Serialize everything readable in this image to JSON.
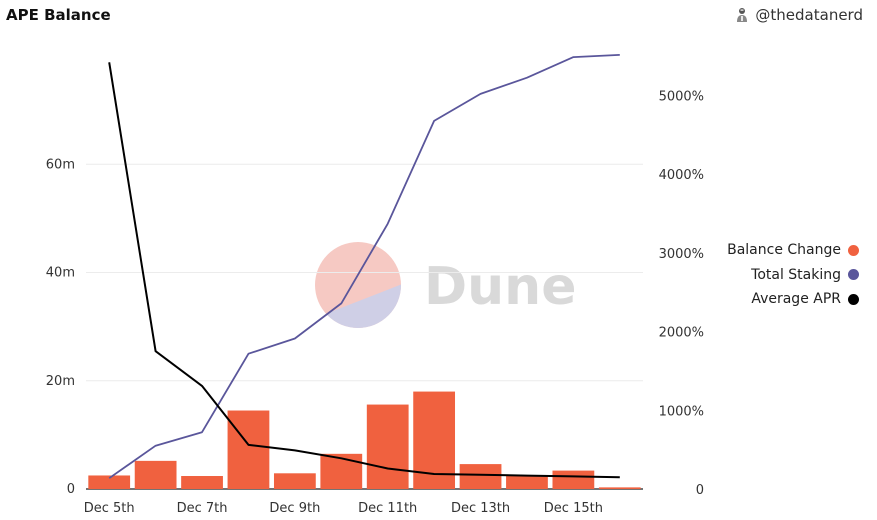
{
  "header": {
    "title": "APE Balance",
    "author": "@thedatanerd",
    "author_icon": "person-avatar-icon"
  },
  "watermark": {
    "text": "Dune",
    "colors": [
      "#f6c9c3",
      "#cfcfe6"
    ]
  },
  "chart_data": {
    "type": "bar",
    "categories": [
      "Dec 5th",
      "Dec 6th",
      "Dec 7th",
      "Dec 8th",
      "Dec 9th",
      "Dec 10th",
      "Dec 11th",
      "Dec 12th",
      "Dec 13th",
      "Dec 14th",
      "Dec 15th",
      "Dec 16th"
    ],
    "x_tick_labels": [
      "Dec 5th",
      "Dec 7th",
      "Dec 9th",
      "Dec 11th",
      "Dec 13th",
      "Dec 15th"
    ],
    "y_left": {
      "ticks": [
        0,
        20,
        40,
        60
      ],
      "tick_labels": [
        "0",
        "20m",
        "40m",
        "60m"
      ],
      "range": [
        0,
        80
      ]
    },
    "y_right": {
      "ticks": [
        0,
        1000,
        2000,
        3000,
        4000,
        5000
      ],
      "tick_labels": [
        "0",
        "1000%",
        "2000%",
        "3000%",
        "4000%",
        "5000%"
      ],
      "range": [
        0,
        5500
      ]
    },
    "grid": true,
    "legend_position": "right",
    "series": [
      {
        "name": "Balance Change",
        "type": "bar",
        "axis": "left",
        "color": "#f0613f",
        "values": [
          2.5,
          5.2,
          2.4,
          14.5,
          2.9,
          6.5,
          15.6,
          18.0,
          4.6,
          2.4,
          3.4,
          0.3
        ]
      },
      {
        "name": "Total Staking",
        "type": "line",
        "axis": "left",
        "color": "#5a569b",
        "values": [
          2.0,
          8.0,
          10.5,
          25.0,
          27.8,
          34.3,
          49.0,
          68.0,
          73.0,
          76.0,
          79.8,
          80.2
        ]
      },
      {
        "name": "Average APR",
        "type": "line",
        "axis": "right",
        "color": "#000000",
        "values": [
          5420,
          1750,
          1310,
          560,
          490,
          390,
          260,
          190,
          180,
          170,
          160,
          150
        ]
      }
    ]
  }
}
